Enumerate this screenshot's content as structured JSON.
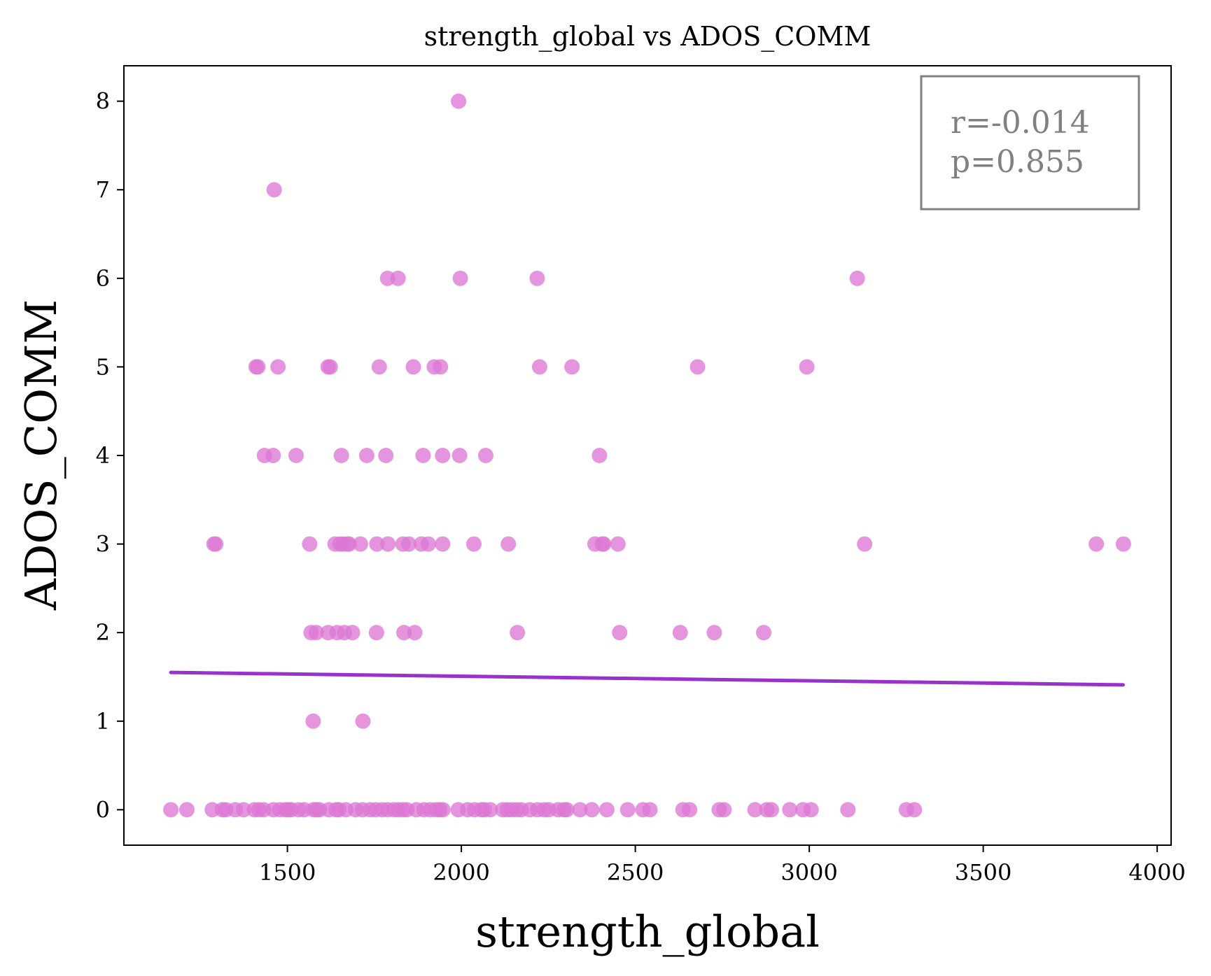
{
  "chart_data": {
    "type": "scatter",
    "title": "strength_global vs ADOS_COMM",
    "xlabel": "strength_global",
    "ylabel": "ADOS_COMM",
    "xlim": [
      1030,
      4040
    ],
    "ylim": [
      -0.4,
      8.4
    ],
    "x_ticks": [
      1500,
      2000,
      2500,
      3000,
      3500,
      4000
    ],
    "y_ticks": [
      0,
      1,
      2,
      3,
      4,
      5,
      6,
      7,
      8
    ],
    "grid": false,
    "point_color": "#dd77d4",
    "line_color": "#9932cc",
    "annotation_color": "#808080",
    "annotation": {
      "r_text": "r=-0.014",
      "p_text": "p=0.855"
    },
    "trend_line": {
      "x": [
        1165,
        3902
      ],
      "y": [
        1.55,
        1.41
      ]
    },
    "points": [
      [
        1992,
        8
      ],
      [
        1462,
        7
      ],
      [
        1788,
        6
      ],
      [
        1818,
        6
      ],
      [
        1997,
        6
      ],
      [
        2218,
        6
      ],
      [
        3138,
        6
      ],
      [
        1410,
        5
      ],
      [
        1415,
        5
      ],
      [
        1473,
        5
      ],
      [
        1617,
        5
      ],
      [
        1623,
        5
      ],
      [
        1764,
        5
      ],
      [
        1862,
        5
      ],
      [
        1922,
        5
      ],
      [
        1940,
        5
      ],
      [
        2225,
        5
      ],
      [
        2318,
        5
      ],
      [
        2679,
        5
      ],
      [
        2993,
        5
      ],
      [
        1434,
        4
      ],
      [
        1459,
        4
      ],
      [
        1525,
        4
      ],
      [
        1655,
        4
      ],
      [
        1728,
        4
      ],
      [
        1783,
        4
      ],
      [
        1890,
        4
      ],
      [
        1946,
        4
      ],
      [
        1995,
        4
      ],
      [
        2070,
        4
      ],
      [
        2397,
        4
      ],
      [
        1289,
        3
      ],
      [
        1294,
        3
      ],
      [
        1564,
        3
      ],
      [
        1637,
        3
      ],
      [
        1651,
        3
      ],
      [
        1660,
        3
      ],
      [
        1672,
        3
      ],
      [
        1677,
        3
      ],
      [
        1710,
        3
      ],
      [
        1757,
        3
      ],
      [
        1789,
        3
      ],
      [
        1832,
        3
      ],
      [
        1849,
        3
      ],
      [
        1885,
        3
      ],
      [
        1905,
        3
      ],
      [
        1946,
        3
      ],
      [
        2036,
        3
      ],
      [
        2135,
        3
      ],
      [
        2384,
        3
      ],
      [
        2405,
        3
      ],
      [
        2409,
        3
      ],
      [
        2450,
        3
      ],
      [
        3159,
        3
      ],
      [
        3825,
        3
      ],
      [
        3903,
        3
      ],
      [
        1568,
        2
      ],
      [
        1583,
        2
      ],
      [
        1617,
        2
      ],
      [
        1643,
        2
      ],
      [
        1664,
        2
      ],
      [
        1687,
        2
      ],
      [
        1756,
        2
      ],
      [
        1835,
        2
      ],
      [
        1866,
        2
      ],
      [
        2161,
        2
      ],
      [
        2455,
        2
      ],
      [
        2629,
        2
      ],
      [
        2727,
        2
      ],
      [
        2869,
        2
      ],
      [
        1574,
        1
      ],
      [
        1717,
        1
      ],
      [
        1165,
        0
      ],
      [
        1211,
        0
      ],
      [
        1284,
        0
      ],
      [
        1313,
        0
      ],
      [
        1323,
        0
      ],
      [
        1350,
        0
      ],
      [
        1374,
        0
      ],
      [
        1405,
        0
      ],
      [
        1418,
        0
      ],
      [
        1432,
        0
      ],
      [
        1460,
        0
      ],
      [
        1478,
        0
      ],
      [
        1494,
        0
      ],
      [
        1502,
        0
      ],
      [
        1511,
        0
      ],
      [
        1532,
        0
      ],
      [
        1548,
        0
      ],
      [
        1575,
        0
      ],
      [
        1584,
        0
      ],
      [
        1592,
        0
      ],
      [
        1619,
        0
      ],
      [
        1640,
        0
      ],
      [
        1648,
        0
      ],
      [
        1668,
        0
      ],
      [
        1696,
        0
      ],
      [
        1716,
        0
      ],
      [
        1738,
        0
      ],
      [
        1754,
        0
      ],
      [
        1772,
        0
      ],
      [
        1788,
        0
      ],
      [
        1806,
        0
      ],
      [
        1819,
        0
      ],
      [
        1832,
        0
      ],
      [
        1843,
        0
      ],
      [
        1871,
        0
      ],
      [
        1893,
        0
      ],
      [
        1911,
        0
      ],
      [
        1927,
        0
      ],
      [
        1938,
        0
      ],
      [
        1947,
        0
      ],
      [
        1991,
        0
      ],
      [
        2018,
        0
      ],
      [
        2038,
        0
      ],
      [
        2058,
        0
      ],
      [
        2066,
        0
      ],
      [
        2083,
        0
      ],
      [
        2119,
        0
      ],
      [
        2132,
        0
      ],
      [
        2145,
        0
      ],
      [
        2159,
        0
      ],
      [
        2172,
        0
      ],
      [
        2197,
        0
      ],
      [
        2219,
        0
      ],
      [
        2238,
        0
      ],
      [
        2251,
        0
      ],
      [
        2278,
        0
      ],
      [
        2295,
        0
      ],
      [
        2303,
        0
      ],
      [
        2341,
        0
      ],
      [
        2375,
        0
      ],
      [
        2418,
        0
      ],
      [
        2478,
        0
      ],
      [
        2522,
        0
      ],
      [
        2542,
        0
      ],
      [
        2637,
        0
      ],
      [
        2656,
        0
      ],
      [
        2741,
        0
      ],
      [
        2755,
        0
      ],
      [
        2844,
        0
      ],
      [
        2878,
        0
      ],
      [
        2891,
        0
      ],
      [
        2944,
        0
      ],
      [
        2982,
        0
      ],
      [
        3005,
        0
      ],
      [
        3111,
        0
      ],
      [
        3279,
        0
      ],
      [
        3302,
        0
      ]
    ]
  }
}
